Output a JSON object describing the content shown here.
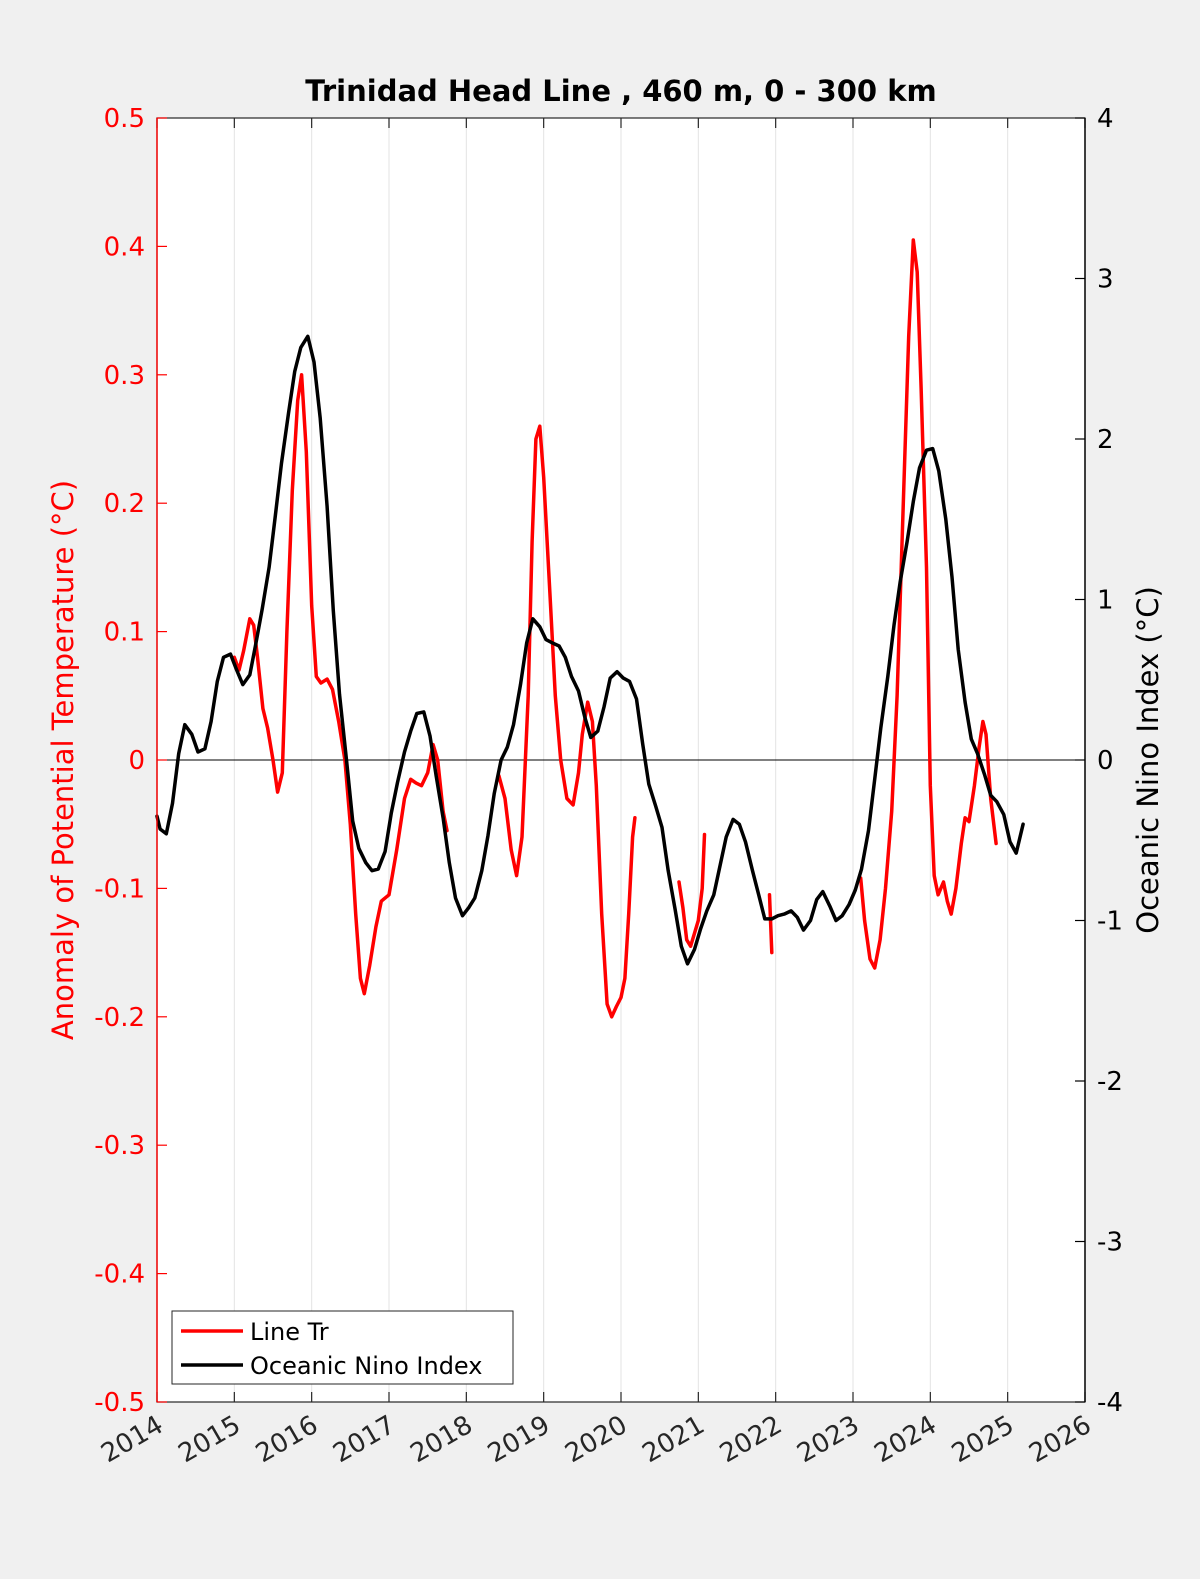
{
  "chart_data": {
    "type": "line",
    "title": "Trinidad Head Line , 460 m, 0 - 300 km",
    "xlabel": "",
    "ylabel_left": "Anomaly of Potential Temperature (°C)",
    "ylabel_right": "Oceanic Nino Index (°C)",
    "xlim": [
      2014,
      2026
    ],
    "ylim_left": [
      -0.5,
      0.5
    ],
    "ylim_right": [
      -4,
      4
    ],
    "x_ticks": [
      2014,
      2015,
      2016,
      2017,
      2018,
      2019,
      2020,
      2021,
      2022,
      2023,
      2024,
      2025,
      2026
    ],
    "x_tick_labels": [
      "2014",
      "2015",
      "2016",
      "2017",
      "2018",
      "2019",
      "2020",
      "2021",
      "2022",
      "2023",
      "2024",
      "2025",
      "2026"
    ],
    "y_left_ticks": [
      0.5,
      0.4,
      0.3,
      0.2,
      0.1,
      0,
      -0.1,
      -0.2,
      -0.3,
      -0.4,
      -0.5
    ],
    "y_left_tick_labels": [
      "0.5",
      "0.4",
      "0.3",
      "0.2",
      "0.1",
      "0",
      "-0.1",
      "-0.2",
      "-0.3",
      "-0.4",
      "-0.5"
    ],
    "y_right_ticks": [
      4,
      3,
      2,
      1,
      0,
      -1,
      -2,
      -3,
      -4
    ],
    "y_right_tick_labels": [
      "4",
      "3",
      "2",
      "1",
      "0",
      "-1",
      "-2",
      "-3",
      "-4"
    ],
    "grid": "vertical x-grid lines only",
    "legend_position": "bottom-left",
    "colors": {
      "line_tr": "#ff0000",
      "oni": "#000000",
      "left_axis": "#ff0000",
      "right_axis": "#000000",
      "background": "#f0f0f0",
      "plot_bg": "#ffffff"
    },
    "series": [
      {
        "name": "Line Tr",
        "axis": "left",
        "color": "#ff0000",
        "segments": [
          [
            [
              2015.0,
              0.08
            ],
            [
              2015.06,
              0.07
            ],
            [
              2015.12,
              0.085
            ],
            [
              2015.2,
              0.11
            ],
            [
              2015.25,
              0.105
            ],
            [
              2015.3,
              0.08
            ],
            [
              2015.37,
              0.04
            ],
            [
              2015.43,
              0.025
            ],
            [
              2015.5,
              0.0
            ],
            [
              2015.56,
              -0.025
            ],
            [
              2015.62,
              -0.01
            ],
            [
              2015.68,
              0.1
            ],
            [
              2015.75,
              0.21
            ],
            [
              2015.82,
              0.28
            ],
            [
              2015.87,
              0.3
            ],
            [
              2015.93,
              0.24
            ],
            [
              2016.0,
              0.12
            ],
            [
              2016.06,
              0.065
            ],
            [
              2016.12,
              0.06
            ],
            [
              2016.2,
              0.063
            ],
            [
              2016.27,
              0.055
            ],
            [
              2016.35,
              0.03
            ],
            [
              2016.43,
              0.0
            ],
            [
              2016.5,
              -0.05
            ],
            [
              2016.57,
              -0.12
            ],
            [
              2016.63,
              -0.17
            ],
            [
              2016.68,
              -0.182
            ],
            [
              2016.75,
              -0.16
            ],
            [
              2016.83,
              -0.13
            ],
            [
              2016.9,
              -0.11
            ],
            [
              2017.0,
              -0.105
            ],
            [
              2017.1,
              -0.07
            ],
            [
              2017.2,
              -0.03
            ],
            [
              2017.28,
              -0.015
            ],
            [
              2017.35,
              -0.018
            ],
            [
              2017.42,
              -0.02
            ],
            [
              2017.5,
              -0.01
            ],
            [
              2017.57,
              0.012
            ],
            [
              2017.63,
              0.0
            ],
            [
              2017.7,
              -0.04
            ],
            [
              2017.75,
              -0.055
            ]
          ],
          [
            [
              2018.42,
              -0.012
            ],
            [
              2018.5,
              -0.03
            ],
            [
              2018.58,
              -0.07
            ],
            [
              2018.65,
              -0.09
            ],
            [
              2018.72,
              -0.06
            ],
            [
              2018.8,
              0.05
            ],
            [
              2018.85,
              0.17
            ],
            [
              2018.9,
              0.25
            ],
            [
              2018.95,
              0.26
            ],
            [
              2019.0,
              0.22
            ],
            [
              2019.08,
              0.13
            ],
            [
              2019.15,
              0.05
            ],
            [
              2019.22,
              0.0
            ],
            [
              2019.3,
              -0.03
            ],
            [
              2019.38,
              -0.035
            ],
            [
              2019.45,
              -0.01
            ],
            [
              2019.5,
              0.02
            ],
            [
              2019.57,
              0.045
            ],
            [
              2019.63,
              0.03
            ],
            [
              2019.68,
              -0.02
            ],
            [
              2019.75,
              -0.12
            ],
            [
              2019.82,
              -0.19
            ],
            [
              2019.88,
              -0.2
            ],
            [
              2019.94,
              -0.192
            ],
            [
              2020.0,
              -0.185
            ],
            [
              2020.05,
              -0.17
            ],
            [
              2020.1,
              -0.12
            ],
            [
              2020.15,
              -0.06
            ],
            [
              2020.18,
              -0.045
            ]
          ],
          [
            [
              2020.75,
              -0.095
            ],
            [
              2020.8,
              -0.115
            ],
            [
              2020.85,
              -0.14
            ],
            [
              2020.9,
              -0.145
            ],
            [
              2020.95,
              -0.135
            ],
            [
              2021.0,
              -0.125
            ],
            [
              2021.05,
              -0.1
            ],
            [
              2021.08,
              -0.058
            ]
          ],
          [
            [
              2021.92,
              -0.105
            ],
            [
              2021.95,
              -0.15
            ]
          ],
          [
            [
              2023.1,
              -0.092
            ],
            [
              2023.15,
              -0.125
            ],
            [
              2023.22,
              -0.155
            ],
            [
              2023.28,
              -0.162
            ],
            [
              2023.35,
              -0.14
            ],
            [
              2023.42,
              -0.1
            ],
            [
              2023.5,
              -0.04
            ],
            [
              2023.57,
              0.05
            ],
            [
              2023.65,
              0.2
            ],
            [
              2023.72,
              0.33
            ],
            [
              2023.78,
              0.405
            ],
            [
              2023.83,
              0.38
            ],
            [
              2023.88,
              0.29
            ],
            [
              2023.95,
              0.15
            ],
            [
              2024.0,
              -0.02
            ],
            [
              2024.05,
              -0.09
            ],
            [
              2024.1,
              -0.105
            ],
            [
              2024.17,
              -0.095
            ],
            [
              2024.22,
              -0.11
            ],
            [
              2024.27,
              -0.12
            ],
            [
              2024.33,
              -0.1
            ],
            [
              2024.4,
              -0.065
            ],
            [
              2024.45,
              -0.045
            ],
            [
              2024.5,
              -0.048
            ],
            [
              2024.57,
              -0.02
            ],
            [
              2024.63,
              0.01
            ],
            [
              2024.68,
              0.03
            ],
            [
              2024.72,
              0.02
            ],
            [
              2024.78,
              -0.03
            ],
            [
              2024.85,
              -0.065
            ]
          ]
        ]
      },
      {
        "name": "Oceanic Nino Index",
        "axis": "right",
        "color": "#000000",
        "segments": [
          [
            [
              2014.0,
              -0.35
            ],
            [
              2014.04,
              -0.43
            ],
            [
              2014.12,
              -0.46
            ],
            [
              2014.2,
              -0.27
            ],
            [
              2014.28,
              0.04
            ],
            [
              2014.36,
              0.22
            ],
            [
              2014.45,
              0.16
            ],
            [
              2014.53,
              0.05
            ],
            [
              2014.62,
              0.07
            ],
            [
              2014.7,
              0.24
            ],
            [
              2014.78,
              0.49
            ],
            [
              2014.86,
              0.64
            ],
            [
              2014.95,
              0.66
            ],
            [
              2015.03,
              0.56
            ],
            [
              2015.11,
              0.47
            ],
            [
              2015.2,
              0.53
            ],
            [
              2015.28,
              0.73
            ],
            [
              2015.36,
              0.94
            ],
            [
              2015.45,
              1.2
            ],
            [
              2015.53,
              1.52
            ],
            [
              2015.61,
              1.85
            ],
            [
              2015.7,
              2.16
            ],
            [
              2015.78,
              2.42
            ],
            [
              2015.86,
              2.57
            ],
            [
              2015.95,
              2.64
            ],
            [
              2016.03,
              2.48
            ],
            [
              2016.11,
              2.13
            ],
            [
              2016.2,
              1.58
            ],
            [
              2016.28,
              0.93
            ],
            [
              2016.36,
              0.41
            ],
            [
              2016.45,
              0.0
            ],
            [
              2016.53,
              -0.38
            ],
            [
              2016.61,
              -0.55
            ],
            [
              2016.7,
              -0.64
            ],
            [
              2016.78,
              -0.69
            ],
            [
              2016.86,
              -0.68
            ],
            [
              2016.95,
              -0.57
            ],
            [
              2017.03,
              -0.33
            ],
            [
              2017.11,
              -0.14
            ],
            [
              2017.2,
              0.05
            ],
            [
              2017.28,
              0.18
            ],
            [
              2017.36,
              0.29
            ],
            [
              2017.45,
              0.3
            ],
            [
              2017.53,
              0.15
            ],
            [
              2017.61,
              -0.1
            ],
            [
              2017.7,
              -0.36
            ],
            [
              2017.78,
              -0.64
            ],
            [
              2017.86,
              -0.86
            ],
            [
              2017.95,
              -0.97
            ],
            [
              2018.03,
              -0.92
            ],
            [
              2018.11,
              -0.86
            ],
            [
              2018.2,
              -0.69
            ],
            [
              2018.28,
              -0.47
            ],
            [
              2018.36,
              -0.21
            ],
            [
              2018.45,
              0.0
            ],
            [
              2018.53,
              0.08
            ],
            [
              2018.61,
              0.22
            ],
            [
              2018.7,
              0.47
            ],
            [
              2018.78,
              0.73
            ],
            [
              2018.86,
              0.88
            ],
            [
              2018.95,
              0.83
            ],
            [
              2019.03,
              0.75
            ],
            [
              2019.11,
              0.73
            ],
            [
              2019.2,
              0.71
            ],
            [
              2019.28,
              0.64
            ],
            [
              2019.36,
              0.52
            ],
            [
              2019.45,
              0.43
            ],
            [
              2019.53,
              0.27
            ],
            [
              2019.61,
              0.14
            ],
            [
              2019.7,
              0.18
            ],
            [
              2019.78,
              0.33
            ],
            [
              2019.86,
              0.51
            ],
            [
              2019.95,
              0.55
            ],
            [
              2020.03,
              0.51
            ],
            [
              2020.11,
              0.49
            ],
            [
              2020.2,
              0.38
            ],
            [
              2020.28,
              0.1
            ],
            [
              2020.36,
              -0.15
            ],
            [
              2020.45,
              -0.29
            ],
            [
              2020.53,
              -0.42
            ],
            [
              2020.61,
              -0.69
            ],
            [
              2020.7,
              -0.93
            ],
            [
              2020.78,
              -1.16
            ],
            [
              2020.86,
              -1.27
            ],
            [
              2020.95,
              -1.18
            ],
            [
              2021.03,
              -1.05
            ],
            [
              2021.11,
              -0.94
            ],
            [
              2021.2,
              -0.84
            ],
            [
              2021.28,
              -0.66
            ],
            [
              2021.36,
              -0.48
            ],
            [
              2021.45,
              -0.37
            ],
            [
              2021.53,
              -0.4
            ],
            [
              2021.61,
              -0.51
            ],
            [
              2021.7,
              -0.69
            ],
            [
              2021.78,
              -0.84
            ],
            [
              2021.86,
              -0.99
            ],
            [
              2021.95,
              -0.99
            ],
            [
              2022.03,
              -0.97
            ],
            [
              2022.11,
              -0.96
            ],
            [
              2022.2,
              -0.94
            ],
            [
              2022.28,
              -0.98
            ],
            [
              2022.36,
              -1.06
            ],
            [
              2022.45,
              -1.0
            ],
            [
              2022.53,
              -0.87
            ],
            [
              2022.61,
              -0.82
            ],
            [
              2022.7,
              -0.91
            ],
            [
              2022.78,
              -1.0
            ],
            [
              2022.86,
              -0.97
            ],
            [
              2022.95,
              -0.9
            ],
            [
              2023.03,
              -0.81
            ],
            [
              2023.11,
              -0.68
            ],
            [
              2023.2,
              -0.44
            ],
            [
              2023.28,
              -0.12
            ],
            [
              2023.36,
              0.2
            ],
            [
              2023.45,
              0.52
            ],
            [
              2023.53,
              0.84
            ],
            [
              2023.61,
              1.11
            ],
            [
              2023.7,
              1.36
            ],
            [
              2023.78,
              1.61
            ],
            [
              2023.86,
              1.82
            ],
            [
              2023.95,
              1.93
            ],
            [
              2024.03,
              1.94
            ],
            [
              2024.11,
              1.8
            ],
            [
              2024.2,
              1.5
            ],
            [
              2024.28,
              1.14
            ],
            [
              2024.36,
              0.69
            ],
            [
              2024.45,
              0.36
            ],
            [
              2024.53,
              0.13
            ],
            [
              2024.61,
              0.04
            ],
            [
              2024.7,
              -0.09
            ],
            [
              2024.78,
              -0.22
            ],
            [
              2024.86,
              -0.26
            ],
            [
              2024.95,
              -0.34
            ],
            [
              2025.03,
              -0.51
            ],
            [
              2025.11,
              -0.58
            ],
            [
              2025.2,
              -0.4
            ]
          ]
        ]
      }
    ]
  }
}
